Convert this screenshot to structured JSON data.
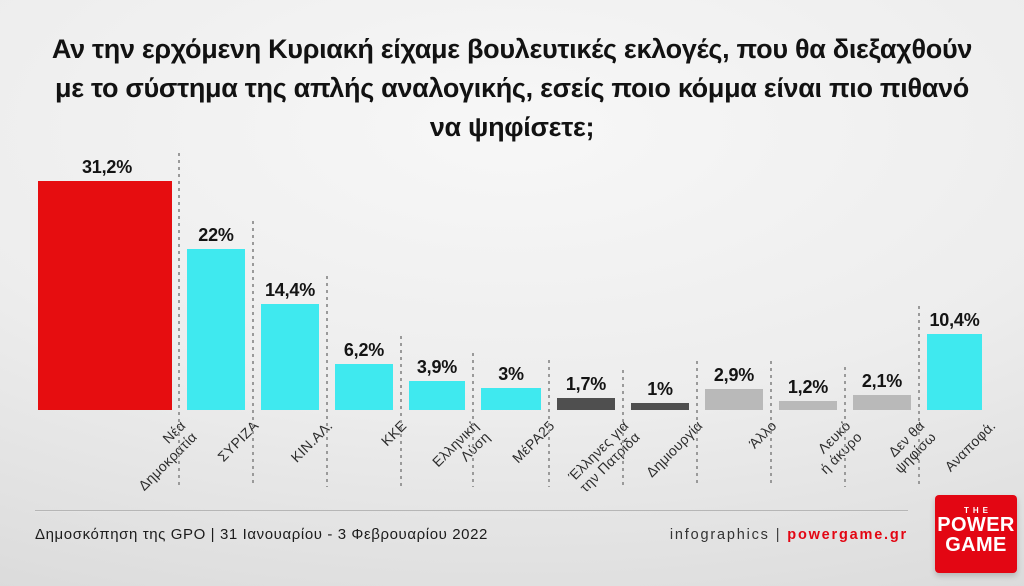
{
  "title": "Αν την ερχόμενη Κυριακή είχαμε βουλευτικές εκλογές, που θα διεξαχθούν με το σύστημα της απλής αναλογικής, εσείς ποιο κόμμα είναι πιο πιθανό να ψηφίσετε;",
  "chart_data": {
    "type": "bar",
    "categories": [
      "Νέα\nΔημοκρατία",
      "ΣΥΡΙΖΑ",
      "ΚΙΝ.ΑΛ.",
      "ΚΚΕ",
      "Ελληνική\nΛύση",
      "ΜέΡΑ25",
      "Έλληνες για\nτην Πατρίδα",
      "Δημιουργία",
      "Άλλο",
      "Λευκό\nή άκυρο",
      "Δεν θα\nψηφίσω",
      "Αναποφά."
    ],
    "values": [
      31.2,
      22,
      14.4,
      6.2,
      3.9,
      3,
      1.7,
      1,
      2.9,
      1.2,
      2.1,
      10.4
    ],
    "value_labels": [
      "31,2%",
      "22%",
      "14,4%",
      "6,2%",
      "3,9%",
      "3%",
      "1,7%",
      "1%",
      "2,9%",
      "1,2%",
      "2,1%",
      "10,4%"
    ],
    "bar_colors": [
      "#e60d10",
      "#3fe9ef",
      "#3fe9ef",
      "#3fe9ef",
      "#3fe9ef",
      "#3fe9ef",
      "#4f4f4f",
      "#4f4f4f",
      "#b9b9b9",
      "#b9b9b9",
      "#b9b9b9",
      "#3fe9ef"
    ],
    "unit": "%",
    "ylim": [
      0,
      33
    ],
    "grid": "off",
    "legend": "none",
    "column_dividers": "dashed"
  },
  "footer": {
    "source": "Δημοσκόπηση της GPO | 31 Ιανουαρίου - 3 Φεβρουαρίου 2022",
    "credits_left": "infographics",
    "credits_separator": "|",
    "credits_right": "powergame.gr"
  },
  "logo": {
    "the": "THE",
    "line1": "POWER",
    "line2": "GAME"
  },
  "colors": {
    "accent_red": "#e60d10",
    "accent_cyan": "#3fe9ef",
    "dark_gray": "#4f4f4f",
    "light_gray": "#b9b9b9",
    "brand_red": "#e30613",
    "background": "#e9e9e9"
  }
}
